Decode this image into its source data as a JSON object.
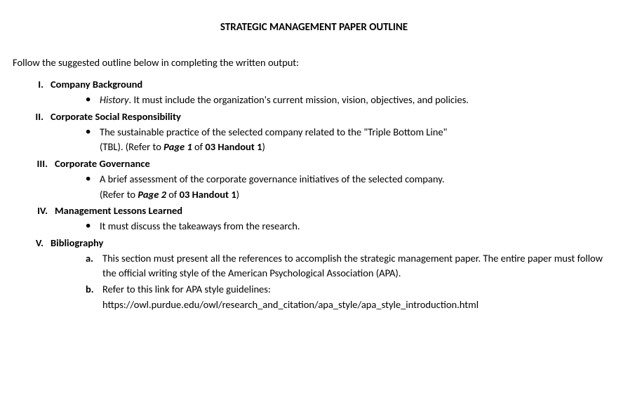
{
  "title": "STRATEGIC MANAGEMENT PAPER OUTLINE",
  "intro": "Follow the suggested outline below in completing the written output:",
  "sections": [
    {
      "roman": "I.",
      "title": "Company Background",
      "bullets": [
        {
          "prefix_italic": "History",
          "after_prefix": ". It must include the organization's current mission, vision, objectives, and policies.",
          "justified": false
        }
      ]
    },
    {
      "roman": "II.",
      "title": "Corporate Social Responsibility",
      "bullets": [
        {
          "line1": "The sustainable practice of the selected company related to the \"Triple Bottom Line\"",
          "line2_prefix": "(TBL). (Refer to ",
          "line2_bolditalic": "Page 1",
          "line2_mid": " of ",
          "line2_bold": "03 Handout 1",
          "line2_suffix": ")",
          "justified": true
        }
      ]
    },
    {
      "roman": "III.",
      "title": "Corporate Governance",
      "bullets": [
        {
          "line1": "A brief assessment of the corporate governance initiatives of the selected company.",
          "line2_prefix": "(Refer to ",
          "line2_bolditalic": "Page 2",
          "line2_mid": " of ",
          "line2_bold": "03 Handout 1",
          "line2_suffix": ")",
          "justified": false
        }
      ]
    },
    {
      "roman": "IV.",
      "title": "Management Lessons Learned",
      "bullets": [
        {
          "plain": "It must discuss the takeaways from the research.",
          "justified": false
        }
      ]
    },
    {
      "roman": "V.",
      "title": "Bibliography",
      "letters": [
        {
          "marker": "a.",
          "text": "This section must present all the references to accomplish the strategic management paper. The entire paper must follow the official writing style of the American Psychological Association (APA).",
          "justified": true
        },
        {
          "marker": "b.",
          "line1": "Refer to this link for APA style guidelines:",
          "url": "https://owl.purdue.edu/owl/research_and_citation/apa_style/apa_style_introduction.html",
          "justified": false
        }
      ]
    }
  ],
  "styles": {
    "font_family": "Calibri, Arial, sans-serif",
    "font_size": 14.5,
    "title_font_size": 15,
    "text_color": "#000000",
    "background_color": "#ffffff"
  }
}
